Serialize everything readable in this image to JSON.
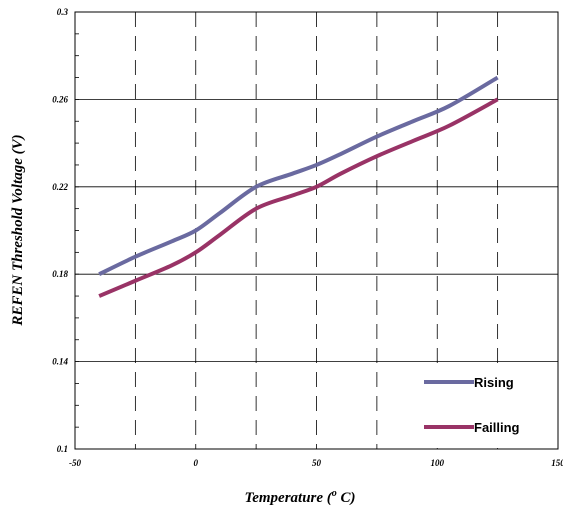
{
  "chart_data": {
    "type": "line",
    "title": "",
    "xlabel": "Temperature (",
    "xlabel_sup": "o",
    "xlabel_end": " C)",
    "ylabel": "REFEN Threshold Voltage (V)",
    "xlim": [
      -50,
      150
    ],
    "ylim": [
      0.1,
      0.3
    ],
    "x_ticks": [
      "-50",
      "0",
      "50",
      "100",
      "150"
    ],
    "y_ticks": [
      "0.1",
      "0.14",
      "0.18",
      "0.22",
      "0.26",
      "0.3"
    ],
    "x_tick_values": [
      -50,
      0,
      50,
      100,
      150
    ],
    "y_tick_values": [
      0.1,
      0.14,
      0.18,
      0.22,
      0.26,
      0.3
    ],
    "grid": true,
    "legend_position": "bottom-right",
    "series": [
      {
        "name": "Rising",
        "color": "#6a6aa0",
        "x": [
          -40,
          -25,
          -10,
          0,
          10,
          25,
          40,
          50,
          60,
          75,
          90,
          105,
          125
        ],
        "y": [
          0.18,
          0.188,
          0.195,
          0.2,
          0.208,
          0.22,
          0.226,
          0.23,
          0.235,
          0.243,
          0.25,
          0.257,
          0.27
        ]
      },
      {
        "name": "Failling",
        "color": "#993366",
        "x": [
          -40,
          -25,
          -10,
          0,
          10,
          25,
          40,
          50,
          60,
          75,
          90,
          105,
          125
        ],
        "y": [
          0.17,
          0.177,
          0.184,
          0.19,
          0.198,
          0.21,
          0.216,
          0.22,
          0.226,
          0.234,
          0.241,
          0.248,
          0.26
        ]
      }
    ]
  }
}
